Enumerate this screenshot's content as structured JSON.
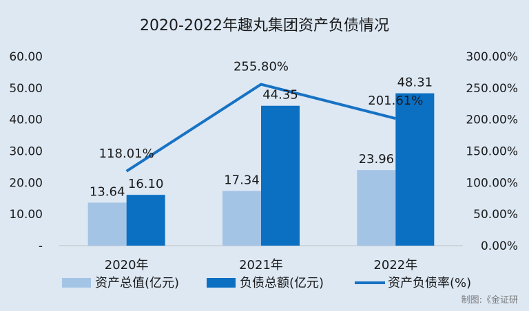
{
  "chart_data": {
    "type": "bar",
    "title": "2020-2022年趣丸集团资产负债情况",
    "categories": [
      "2020年",
      "2021年",
      "2022年"
    ],
    "series": [
      {
        "name": "资产总值(亿元)",
        "type": "bar",
        "axis": "left",
        "color": "#a4c4e6",
        "values": [
          13.64,
          17.34,
          23.96
        ],
        "labels": [
          "13.64",
          "17.34",
          "23.96"
        ]
      },
      {
        "name": "负债总额(亿元)",
        "type": "bar",
        "axis": "left",
        "color": "#0b6fc2",
        "values": [
          16.1,
          44.35,
          48.31
        ],
        "labels": [
          "16.10",
          "44.35",
          "48.31"
        ]
      },
      {
        "name": "资产负债率(%)",
        "type": "line",
        "axis": "right",
        "color": "#1772c4",
        "values": [
          118.01,
          255.8,
          201.61
        ],
        "labels": [
          "118.01%",
          "255.80%",
          "201.61%"
        ]
      }
    ],
    "y_left": {
      "min": 0,
      "max": 60,
      "ticks": [
        "-",
        "10.00",
        "20.00",
        "30.00",
        "40.00",
        "50.00",
        "60.00"
      ]
    },
    "y_right": {
      "min": 0,
      "max": 300,
      "ticks": [
        "0.00%",
        "50.00%",
        "100.00%",
        "150.00%",
        "200.00%",
        "250.00%",
        "300.00%"
      ]
    },
    "grid": false,
    "legend_position": "bottom",
    "credit": "制图:《金证研"
  }
}
